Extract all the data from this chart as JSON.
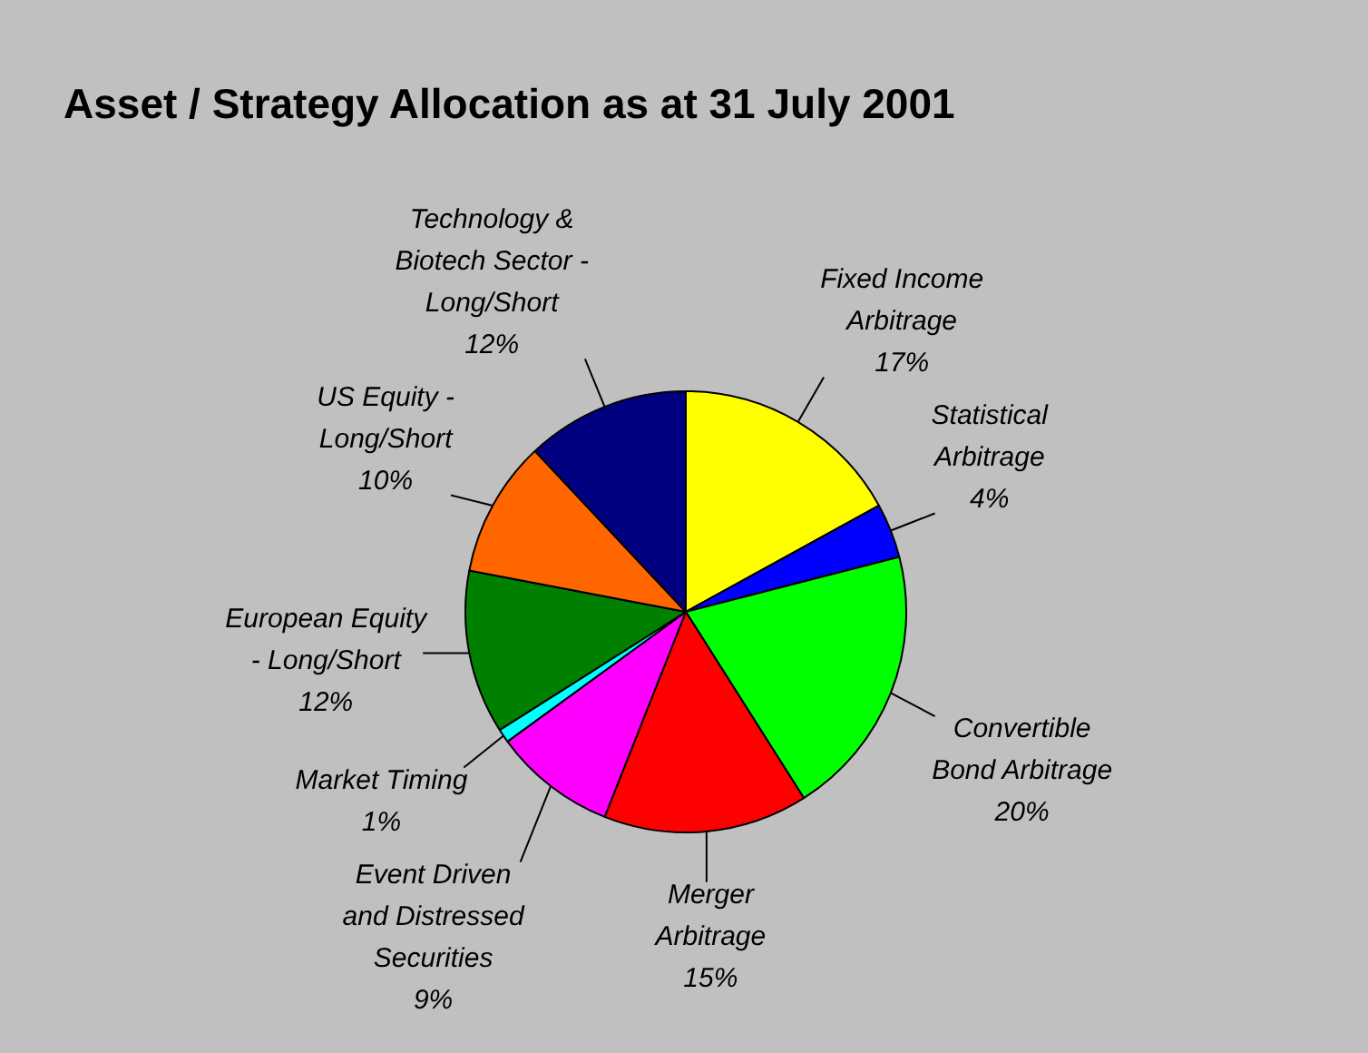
{
  "chart_data": {
    "type": "pie",
    "title": "Asset / Strategy Allocation as at 31 July 2001",
    "categories": [
      "Fixed Income Arbitrage",
      "Statistical Arbitrage",
      "Convertible Bond Arbitrage",
      "Merger Arbitrage",
      "Event Driven and Distressed Securities",
      "Market Timing",
      "European Equity - Long/Short",
      "US Equity - Long/Short",
      "Technology & Biotech Sector - Long/Short"
    ],
    "values": [
      17,
      4,
      20,
      15,
      9,
      1,
      12,
      10,
      12
    ],
    "colors": [
      "#ffff00",
      "#0000ff",
      "#00ff00",
      "#ff0000",
      "#ff00ff",
      "#00ffff",
      "#008000",
      "#ff6600",
      "#000080"
    ],
    "value_labels": [
      "17%",
      "4%",
      "20%",
      "15%",
      "9%",
      "1%",
      "12%",
      "10%",
      "12%"
    ]
  }
}
